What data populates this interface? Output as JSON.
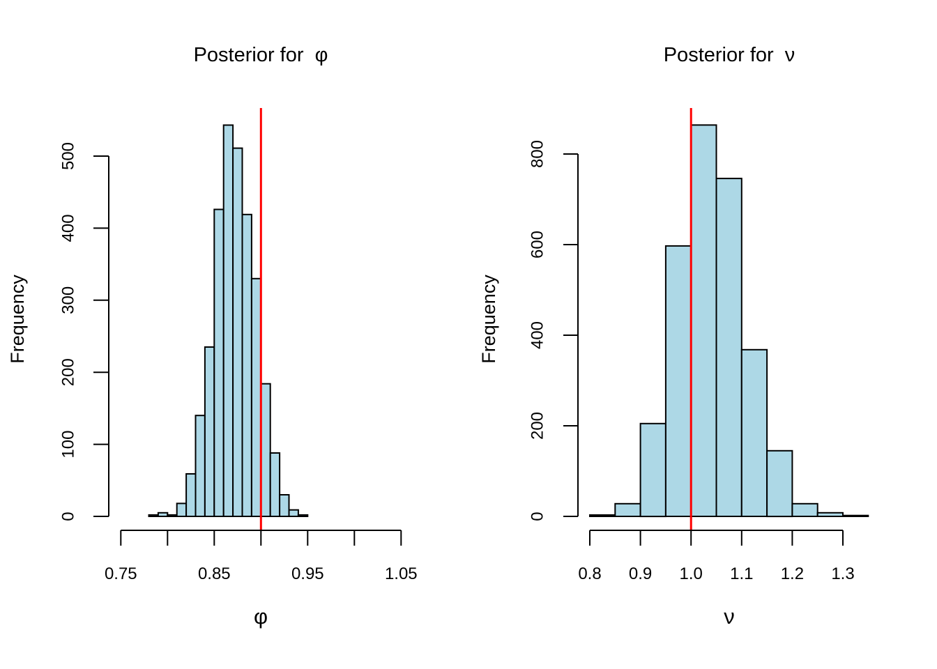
{
  "figure": {
    "background": "#ffffff",
    "bar_fill": "#ADD8E6",
    "bar_stroke": "#000000",
    "axis_color": "#000000",
    "ref_line_color": "#FF0000"
  },
  "chart_data": [
    {
      "type": "bar",
      "title": "Posterior for  φ",
      "xlabel": "φ",
      "ylabel": "Frequency",
      "bin_start": 0.78,
      "bin_width": 0.01,
      "values": [
        2,
        5,
        2,
        18,
        59,
        140,
        235,
        426,
        543,
        511,
        419,
        330,
        184,
        88,
        30,
        9,
        2
      ],
      "x_ticks": [
        0.75,
        0.8,
        0.85,
        0.9,
        0.95,
        1.0,
        1.05
      ],
      "x_tick_labels": [
        "0.75",
        "",
        "0.85",
        "",
        "0.95",
        "",
        "1.05"
      ],
      "y_ticks": [
        0,
        100,
        200,
        300,
        400,
        500
      ],
      "y_tick_labels": [
        "0",
        "100",
        "200",
        "300",
        "400",
        "500"
      ],
      "xlim": [
        0.75,
        1.05
      ],
      "ylim": [
        0,
        560
      ],
      "ref_line_x": 0.9,
      "legend": "none",
      "grid": false
    },
    {
      "type": "bar",
      "title": "Posterior for  ν",
      "xlabel": "ν",
      "ylabel": "Frequency",
      "bin_start": 0.8,
      "bin_width": 0.05,
      "values": [
        3,
        28,
        205,
        597,
        864,
        746,
        368,
        145,
        28,
        8,
        2
      ],
      "x_ticks": [
        0.8,
        0.9,
        1.0,
        1.1,
        1.2,
        1.3
      ],
      "x_tick_labels": [
        "0.8",
        "0.9",
        "1.0",
        "1.1",
        "1.2",
        "1.3"
      ],
      "y_ticks": [
        0,
        200,
        400,
        600,
        800
      ],
      "y_tick_labels": [
        "0",
        "200",
        "400",
        "600",
        "800"
      ],
      "xlim": [
        0.8,
        1.35
      ],
      "ylim": [
        0,
        900
      ],
      "ref_line_x": 1.0,
      "legend": "none",
      "grid": false
    }
  ]
}
